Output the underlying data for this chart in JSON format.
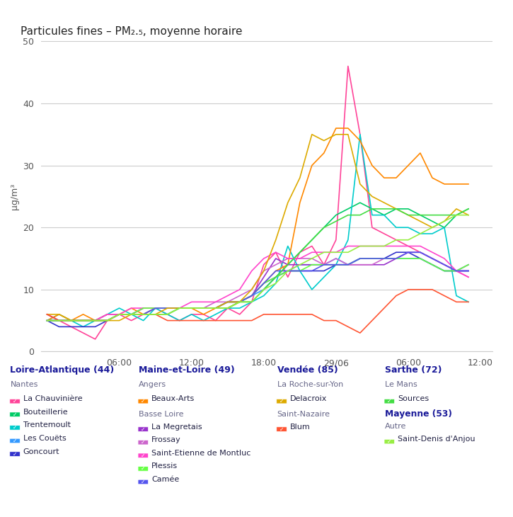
{
  "title": "Particules fines – PM₂.₅, moyenne horaire",
  "ylabel": "µg/m³",
  "ylim": [
    0,
    50
  ],
  "yticks": [
    0,
    10,
    20,
    30,
    40,
    50
  ],
  "xtick_labels": [
    "06:00",
    "12:00",
    "18:00",
    "29/06",
    "06:00",
    "12:00"
  ],
  "background_color": "#ffffff",
  "legend": {
    "col1_title": "Loire-Atlantique (44)",
    "col1_sub1": "Nantes",
    "col1_items": [
      {
        "name": "La Chauvinière",
        "color": "#ff4499",
        "dash": false
      },
      {
        "name": "Bouteillerie",
        "color": "#00cc66",
        "dash": false
      },
      {
        "name": "Trentemoult",
        "color": "#00cccc",
        "dash": false
      },
      {
        "name": "Les Couëts",
        "color": "#3399ff",
        "dash": false
      },
      {
        "name": "Goncourt",
        "color": "#3333cc",
        "dash": false
      }
    ],
    "col2_title": "Maine-et-Loire (49)",
    "col2_sub1": "Angers",
    "col2_items_angers": [
      {
        "name": "Beaux-Arts",
        "color": "#ff8800",
        "dash": false
      }
    ],
    "col2_sub2": "Basse Loire",
    "col2_items_basse": [
      {
        "name": "La Megretais",
        "color": "#9933cc",
        "dash": false
      },
      {
        "name": "Frossay",
        "color": "#cc66cc",
        "dash": false
      },
      {
        "name": "Saint-Etienne de Montluc",
        "color": "#ff44cc",
        "dash": false
      },
      {
        "name": "Plessis",
        "color": "#66ff44",
        "dash": false
      },
      {
        "name": "Camée",
        "color": "#5555ee",
        "dash": false
      }
    ],
    "col3_title": "Vendée (85)",
    "col3_sub1": "La Roche-sur-Yon",
    "col3_items_lrsy": [
      {
        "name": "Delacroix",
        "color": "#ddaa00",
        "dash": false
      }
    ],
    "col3_sub2": "Saint-Nazaire",
    "col3_items_sn": [
      {
        "name": "Blum",
        "color": "#ff5533",
        "dash": false
      }
    ],
    "col4_title": "Sarthe (72)",
    "col4_sub1": "Le Mans",
    "col4_items_lm": [
      {
        "name": "Sources",
        "color": "#44dd44",
        "dash": false
      }
    ],
    "col4_sub2": "Mayenne (53)",
    "col4_sub3": "Autre",
    "col4_items_autre": [
      {
        "name": "Saint-Denis d'Anjou",
        "color": "#99ee44",
        "dash": false
      }
    ]
  },
  "series": [
    {
      "name": "La Chauvinière",
      "color": "#ff4499",
      "dash": false,
      "values": [
        6,
        5,
        4,
        3,
        2,
        5,
        6,
        5,
        6,
        7,
        6,
        5,
        6,
        6,
        5,
        7,
        6,
        8,
        14,
        16,
        12,
        16,
        17,
        14,
        18,
        46,
        35,
        20,
        19,
        18,
        17,
        16,
        15,
        14,
        13,
        12
      ]
    },
    {
      "name": "Bouteillerie",
      "color": "#00cc66",
      "dash": false,
      "values": [
        5,
        5,
        5,
        5,
        5,
        5,
        6,
        6,
        6,
        6,
        6,
        7,
        7,
        7,
        7,
        7,
        8,
        8,
        10,
        12,
        14,
        16,
        18,
        20,
        22,
        23,
        24,
        23,
        22,
        23,
        23,
        22,
        21,
        20,
        22,
        23
      ]
    },
    {
      "name": "Trentemoult",
      "color": "#00cccc",
      "dash": false,
      "values": [
        5,
        6,
        5,
        4,
        5,
        6,
        7,
        6,
        5,
        7,
        6,
        5,
        6,
        5,
        6,
        7,
        7,
        8,
        9,
        11,
        17,
        13,
        10,
        12,
        14,
        18,
        35,
        22,
        22,
        20,
        20,
        19,
        19,
        20,
        9,
        8
      ]
    },
    {
      "name": "Les Couëts",
      "color": "#3399ff",
      "dash": false,
      "values": [
        5,
        5,
        5,
        5,
        5,
        6,
        6,
        6,
        6,
        7,
        7,
        7,
        7,
        7,
        7,
        8,
        8,
        9,
        10,
        12,
        13,
        14,
        14,
        14,
        15,
        14,
        15,
        15,
        15,
        15,
        15,
        15,
        14,
        13,
        13,
        14
      ]
    },
    {
      "name": "Goncourt",
      "color": "#3333cc",
      "dash": false,
      "values": [
        5,
        4,
        4,
        4,
        4,
        5,
        6,
        6,
        7,
        7,
        7,
        7,
        7,
        7,
        7,
        8,
        8,
        9,
        11,
        12,
        13,
        13,
        13,
        13,
        14,
        14,
        15,
        15,
        15,
        16,
        16,
        15,
        14,
        13,
        13,
        13
      ]
    },
    {
      "name": "Beaux-Arts",
      "color": "#ff8800",
      "dash": false,
      "values": [
        5,
        6,
        5,
        6,
        5,
        6,
        6,
        7,
        6,
        7,
        7,
        7,
        7,
        6,
        7,
        7,
        8,
        9,
        11,
        13,
        14,
        24,
        30,
        32,
        36,
        36,
        34,
        30,
        28,
        28,
        30,
        32,
        28,
        27,
        27,
        27
      ]
    },
    {
      "name": "La Megretais",
      "color": "#9933cc",
      "dash": false,
      "values": [
        6,
        5,
        5,
        5,
        5,
        5,
        6,
        6,
        7,
        7,
        7,
        7,
        7,
        7,
        7,
        8,
        8,
        9,
        12,
        15,
        14,
        14,
        14,
        14,
        14,
        14,
        14,
        14,
        14,
        15,
        16,
        16,
        15,
        14,
        13,
        13
      ]
    },
    {
      "name": "Frossay",
      "color": "#cc66cc",
      "dash": false,
      "values": [
        5,
        5,
        5,
        5,
        5,
        6,
        6,
        6,
        7,
        7,
        7,
        7,
        7,
        7,
        8,
        8,
        9,
        10,
        13,
        14,
        15,
        15,
        15,
        14,
        15,
        14,
        14,
        14,
        15,
        15,
        16,
        16,
        15,
        14,
        13,
        14
      ]
    },
    {
      "name": "Saint-Etienne de Montluc",
      "color": "#ff44cc",
      "dash": false,
      "values": [
        5,
        5,
        5,
        5,
        5,
        6,
        6,
        7,
        7,
        7,
        7,
        7,
        8,
        8,
        8,
        9,
        10,
        13,
        15,
        16,
        15,
        15,
        16,
        16,
        16,
        17,
        17,
        17,
        17,
        17,
        17,
        17,
        16,
        15,
        13,
        12
      ]
    },
    {
      "name": "Plessis",
      "color": "#66ff44",
      "dash": false,
      "values": [
        5,
        5,
        5,
        5,
        5,
        5,
        6,
        6,
        7,
        7,
        7,
        7,
        7,
        7,
        7,
        8,
        8,
        9,
        11,
        12,
        13,
        13,
        14,
        14,
        14,
        14,
        15,
        15,
        15,
        15,
        15,
        15,
        14,
        13,
        13,
        14
      ]
    },
    {
      "name": "Camée",
      "color": "#5555ee",
      "dash": false,
      "values": [
        5,
        5,
        5,
        5,
        5,
        5,
        6,
        6,
        6,
        7,
        7,
        7,
        7,
        7,
        7,
        8,
        8,
        9,
        11,
        13,
        13,
        13,
        13,
        14,
        14,
        14,
        15,
        15,
        15,
        15,
        16,
        16,
        15,
        14,
        13,
        13
      ]
    },
    {
      "name": "Delacroix",
      "color": "#ddaa00",
      "dash": false,
      "values": [
        6,
        6,
        5,
        5,
        5,
        5,
        5,
        6,
        6,
        6,
        7,
        7,
        7,
        7,
        7,
        8,
        8,
        10,
        13,
        18,
        24,
        28,
        35,
        34,
        35,
        35,
        27,
        25,
        24,
        23,
        22,
        21,
        20,
        21,
        23,
        22
      ]
    },
    {
      "name": "Blum",
      "color": "#ff5533",
      "dash": false,
      "values": [
        6,
        5,
        5,
        5,
        5,
        5,
        6,
        6,
        6,
        6,
        5,
        5,
        5,
        5,
        5,
        5,
        5,
        5,
        6,
        6,
        6,
        6,
        6,
        5,
        5,
        4,
        3,
        5,
        7,
        9,
        10,
        10,
        10,
        9,
        8,
        8
      ]
    },
    {
      "name": "Sources",
      "color": "#44dd44",
      "dash": false,
      "values": [
        5,
        5,
        5,
        5,
        5,
        5,
        6,
        6,
        6,
        6,
        6,
        7,
        7,
        7,
        7,
        7,
        8,
        8,
        10,
        12,
        14,
        16,
        18,
        20,
        21,
        22,
        22,
        23,
        23,
        23,
        22,
        22,
        22,
        22,
        22,
        23
      ]
    },
    {
      "name": "Saint-Denis d'Anjou",
      "color": "#99ee44",
      "dash": false,
      "values": [
        5,
        5,
        5,
        5,
        5,
        5,
        6,
        6,
        6,
        6,
        6,
        7,
        7,
        7,
        7,
        7,
        8,
        8,
        10,
        11,
        13,
        14,
        15,
        16,
        16,
        16,
        17,
        17,
        17,
        18,
        18,
        19,
        20,
        21,
        22,
        22
      ]
    }
  ]
}
